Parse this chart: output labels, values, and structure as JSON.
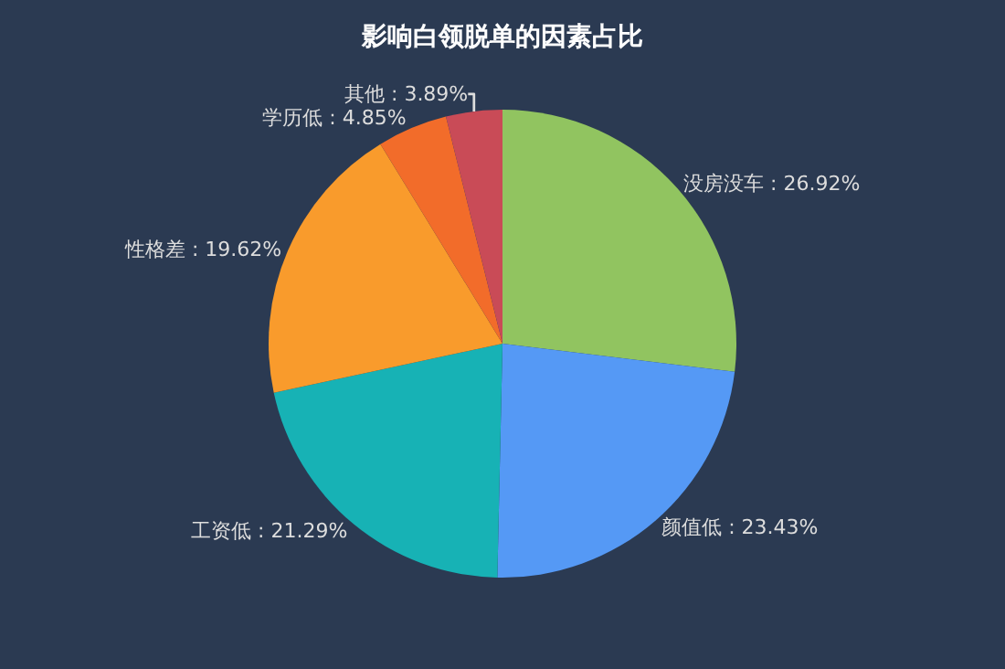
{
  "chart_data": {
    "type": "pie",
    "title": "影响白领脱单的因素占比",
    "categories": [
      "没房没车",
      "颜值低",
      "工资低",
      "性格差",
      "学历低",
      "其他"
    ],
    "values": [
      26.92,
      23.43,
      21.29,
      19.62,
      4.85,
      3.89
    ],
    "colors": [
      "#91c460",
      "#5599f5",
      "#17b2b5",
      "#f99b2c",
      "#f26c2a",
      "#c94b57"
    ],
    "value_labels": [
      "26.92%",
      "23.43%",
      "21.29%",
      "19.62%",
      "4.85%",
      "3.89%"
    ],
    "legend": false
  }
}
